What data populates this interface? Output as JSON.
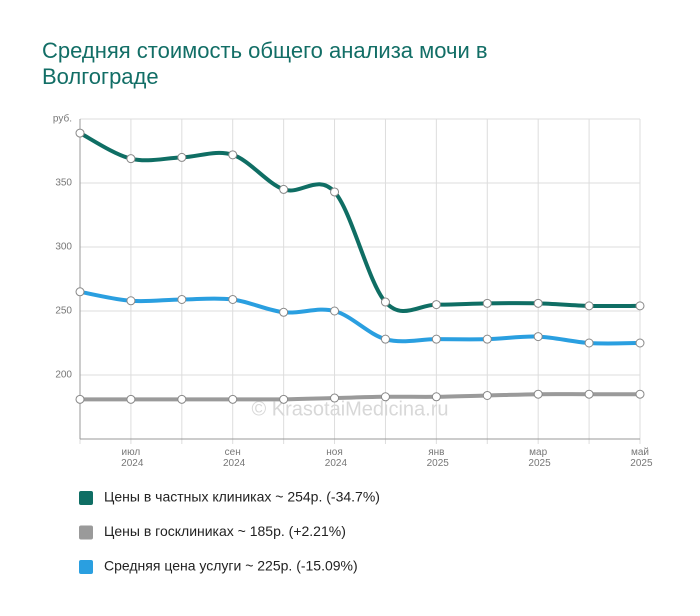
{
  "chart_data": {
    "type": "line",
    "title": "Средняя стоимость общего анализа мочи в Волгограде",
    "watermark": "© KrasotaiMedicina.ru",
    "categories": [
      null,
      "июл 2024",
      null,
      "сен 2024",
      null,
      "ноя 2024",
      null,
      "янв 2025",
      null,
      "мар 2025",
      null,
      "май 2025"
    ],
    "series": [
      {
        "name": "Цены в частных клиниках ~ 254р. (-34.7%)",
        "color": "#0f6e64",
        "values": [
          389,
          369,
          370,
          372,
          345,
          343,
          257,
          255,
          256,
          256,
          254,
          254
        ]
      },
      {
        "name": "Цены в госклиниках ~ 185р. (+2.21%)",
        "color": "#9a9a9a",
        "values": [
          181,
          181,
          181,
          181,
          181,
          182,
          183,
          183,
          184,
          185,
          185,
          185
        ]
      },
      {
        "name": "Средняя цена услуги ~ 225р. (-15.09%)",
        "color": "#2a9fe0",
        "values": [
          265,
          258,
          259,
          259,
          249,
          250,
          228,
          228,
          228,
          230,
          225,
          225
        ]
      }
    ],
    "ylim": [
      150,
      400
    ],
    "yticks": [
      200,
      250,
      300,
      350,
      {
        "value": 400,
        "label": "руб."
      }
    ],
    "grid": true
  }
}
